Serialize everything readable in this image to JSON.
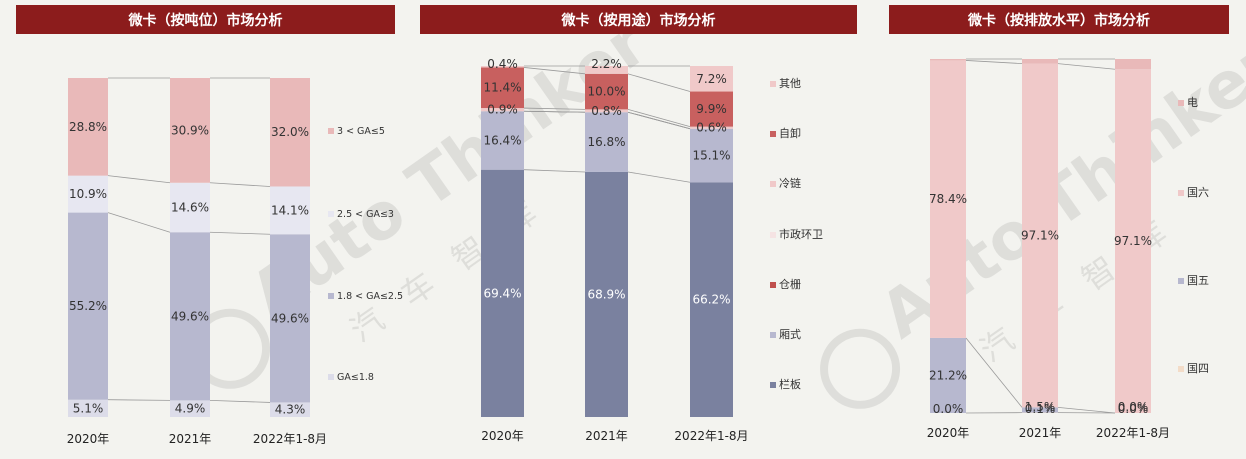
{
  "chart_data": [
    {
      "type": "bar",
      "stacked": true,
      "normalized": true,
      "title": "微卡（按吨位）市场分析",
      "categories": [
        "2020年",
        "2021年",
        "2022年1-8月"
      ],
      "series": [
        {
          "name": "GA≤1.8",
          "values": [
            5.1,
            4.9,
            4.3
          ],
          "color": "#dcdce9"
        },
        {
          "name": "1.8 < GA≤2.5",
          "values": [
            55.2,
            49.6,
            49.6
          ],
          "color": "#b7b8cf"
        },
        {
          "name": "2.5 < GA≤3",
          "values": [
            10.9,
            14.6,
            14.1
          ],
          "color": "#e7e7f1"
        },
        {
          "name": "3 < GA≤5",
          "values": [
            28.8,
            30.9,
            32.0
          ],
          "color": "#e9b9b9"
        }
      ],
      "labels": [
        [
          "5.1%",
          "4.9%",
          "4.3%"
        ],
        [
          "55.2%",
          "49.6%",
          "49.6%"
        ],
        [
          "10.9%",
          "14.6%",
          "14.1%"
        ],
        [
          "28.8%",
          "30.9%",
          "32.0%"
        ]
      ],
      "legend_position": "right"
    },
    {
      "type": "bar",
      "stacked": true,
      "normalized": true,
      "title": "微卡（按用途）市场分析",
      "categories": [
        "2020年",
        "2021年",
        "2022年1-8月"
      ],
      "series": [
        {
          "name": "栏板",
          "values": [
            69.4,
            68.9,
            66.2
          ],
          "color": "#7a819f"
        },
        {
          "name": "厢式",
          "values": [
            16.4,
            16.8,
            15.1
          ],
          "color": "#b7b8cf"
        },
        {
          "name": "仓栅",
          "values": [
            0.0,
            0.0,
            0.0
          ],
          "color": "#c0504d"
        },
        {
          "name": "市政环卫",
          "values": [
            0.0,
            0.0,
            0.0
          ],
          "color": "#f5e3e3"
        },
        {
          "name": "冷链",
          "values": [
            0.9,
            0.8,
            0.6
          ],
          "color": "#f0c9c9"
        },
        {
          "name": "自卸",
          "values": [
            11.4,
            10.0,
            9.9
          ],
          "color": "#c8605f"
        },
        {
          "name": "其他",
          "values": [
            0.4,
            2.2,
            7.2
          ],
          "color": "#f0c9c9"
        }
      ],
      "labels": [
        [
          "69.4%",
          "68.9%",
          "66.2%"
        ],
        [
          "16.4%",
          "16.8%",
          "15.1%"
        ],
        [
          "",
          "",
          ""
        ],
        [
          "",
          "",
          ""
        ],
        [
          "0.9%",
          "0.8%",
          "0.6%"
        ],
        [
          "11.4%",
          "10.0%",
          "9.9%"
        ],
        [
          "0.4%",
          "2.2%",
          "7.2%"
        ]
      ],
      "legend_order": [
        "其他",
        "自卸",
        "冷链",
        "市政环卫",
        "仓栅",
        "厢式",
        "栏板"
      ],
      "legend_position": "right"
    },
    {
      "type": "bar",
      "stacked": true,
      "normalized": true,
      "title": "微卡（按排放水平）市场分析",
      "categories": [
        "2020年",
        "2021年",
        "2022年1-8月"
      ],
      "series": [
        {
          "name": "国四",
          "values": [
            0.0,
            0.1,
            0.0
          ],
          "color": "#f3dcc8"
        },
        {
          "name": "国五",
          "values": [
            21.2,
            1.5,
            0.0
          ],
          "color": "#b7b8cf"
        },
        {
          "name": "国六",
          "values": [
            78.4,
            97.1,
            97.1
          ],
          "color": "#f0c9c9"
        },
        {
          "name": "电",
          "values": [
            0.4,
            1.3,
            2.9
          ],
          "color": "#e9b9b9"
        }
      ],
      "labels": [
        [
          "0.0%",
          "0.1%",
          "0.0%"
        ],
        [
          "21.2%",
          "1.5%",
          "0.0%"
        ],
        [
          "78.4%",
          "97.1%",
          "97.1%"
        ],
        [
          "",
          "",
          ""
        ]
      ],
      "legend_order": [
        "电",
        "国六",
        "国五",
        "国四"
      ],
      "legend_position": "right"
    }
  ],
  "watermark": "Auto Thinker 汽车智库"
}
